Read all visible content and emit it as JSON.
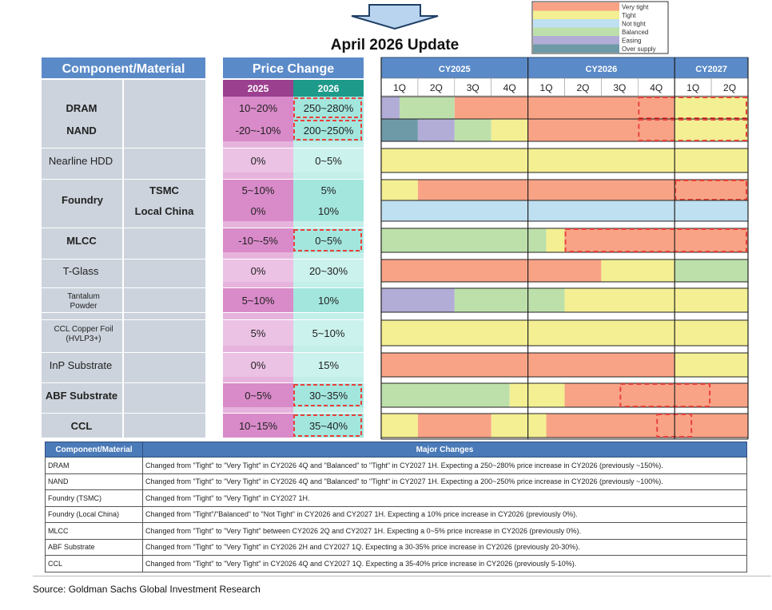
{
  "title": "April 2026 Update",
  "colors": {
    "very_tight": "#f9a386",
    "tight": "#f4ef93",
    "not_tight": "#bfe0f1",
    "balanced": "#bde0ab",
    "easing": "#b1add6",
    "over_supply": "#6e9aa8",
    "header_blue": "#5b8ac8",
    "sub_gray": "#ccd3dc",
    "pc2025": "#d98ac9",
    "pc2026": "#a3e6de",
    "dashed": "#e8413b"
  },
  "chart_data": {
    "type": "table",
    "title": "April 2026 Update",
    "legend": [
      {
        "key": "very_tight",
        "label": "Very tight"
      },
      {
        "key": "tight",
        "label": "Tight"
      },
      {
        "key": "not_tight",
        "label": "Not tight"
      },
      {
        "key": "balanced",
        "label": "Balanced"
      },
      {
        "key": "easing",
        "label": "Easing"
      },
      {
        "key": "over_supply",
        "label": "Over supply"
      }
    ],
    "headers": {
      "component": "Component/Material",
      "price_change": "Price Change",
      "y2025": "2025",
      "y2026": "2026",
      "years": [
        "CY2025",
        "CY2026",
        "CY2027"
      ],
      "quarters": [
        "1Q",
        "2Q",
        "3Q",
        "4Q",
        "1Q",
        "2Q",
        "3Q",
        "4Q",
        "1Q",
        "2Q"
      ]
    },
    "rows": [
      {
        "name": "DRAM",
        "sub": "",
        "bold": true,
        "pc2025": "10~20%",
        "pc2026": "250~280%",
        "dash2026": true,
        "segments": [
          [
            0,
            0.5,
            "easing"
          ],
          [
            0.5,
            2,
            "balanced"
          ],
          [
            2,
            4,
            "very_tight"
          ],
          [
            4,
            7,
            "very_tight"
          ],
          [
            7,
            8,
            "very_tight"
          ],
          [
            8,
            10,
            "tight"
          ]
        ],
        "dash": [
          [
            7,
            10
          ]
        ]
      },
      {
        "name": "NAND",
        "sub": "",
        "bold": true,
        "pc2025": "-20~-10%",
        "pc2026": "200~250%",
        "dash2026": true,
        "segments": [
          [
            0,
            1,
            "over_supply"
          ],
          [
            1,
            2,
            "easing"
          ],
          [
            2,
            3,
            "balanced"
          ],
          [
            3,
            4,
            "tight"
          ],
          [
            4,
            7,
            "very_tight"
          ],
          [
            7,
            8,
            "very_tight"
          ],
          [
            8,
            10,
            "tight"
          ]
        ],
        "dash": [
          [
            7,
            10
          ]
        ]
      },
      {
        "name": "Nearline HDD",
        "sub": "",
        "bold": false,
        "pc2025": "0%",
        "pc2026": "0~5%",
        "dash2026": false,
        "segments": [
          [
            0,
            10,
            "tight"
          ]
        ],
        "dash": []
      },
      {
        "name": "Foundry",
        "sub": "TSMC",
        "bold": true,
        "pc2025": "5~10%",
        "pc2026": "5%",
        "dash2026": false,
        "segments": [
          [
            0,
            1,
            "tight"
          ],
          [
            1,
            10,
            "very_tight"
          ]
        ],
        "dash": [
          [
            8,
            10
          ]
        ]
      },
      {
        "name": "",
        "sub": "Local China",
        "bold": true,
        "pc2025": "0%",
        "pc2026": "10%",
        "dash2026": false,
        "segments": [
          [
            0,
            10,
            "not_tight"
          ]
        ],
        "dash": []
      },
      {
        "name": "MLCC",
        "sub": "",
        "bold": true,
        "pc2025": "-10~-5%",
        "pc2026": "0~5%",
        "dash2026": true,
        "segments": [
          [
            0,
            4.5,
            "balanced"
          ],
          [
            4.5,
            5,
            "tight"
          ],
          [
            5,
            10,
            "very_tight"
          ]
        ],
        "dash": [
          [
            5,
            10
          ]
        ]
      },
      {
        "name": "T-Glass",
        "sub": "",
        "bold": false,
        "pc2025": "0%",
        "pc2026": "20~30%",
        "dash2026": false,
        "segments": [
          [
            0,
            6,
            "very_tight"
          ],
          [
            6,
            8,
            "tight"
          ],
          [
            8,
            10,
            "balanced"
          ]
        ],
        "dash": []
      },
      {
        "name": "Tantalum",
        "name2": "Powder",
        "sub": "",
        "bold": false,
        "small": true,
        "pc2025": "5~10%",
        "pc2026": "10%",
        "dash2026": false,
        "segments": [
          [
            0,
            2,
            "easing"
          ],
          [
            2,
            5,
            "balanced"
          ],
          [
            5,
            10,
            "tight"
          ]
        ],
        "dash": []
      },
      {
        "name": "CCL Copper Foil",
        "name2": "(HVLP3+)",
        "sub": "",
        "bold": false,
        "small": true,
        "pc2025": "5%",
        "pc2026": "5~10%",
        "dash2026": false,
        "segments": [
          [
            0,
            10,
            "tight"
          ]
        ],
        "dash": []
      },
      {
        "name": "InP Substrate",
        "sub": "",
        "bold": false,
        "pc2025": "0%",
        "pc2026": "15%",
        "dash2026": false,
        "segments": [
          [
            0,
            8,
            "very_tight"
          ],
          [
            8,
            10,
            "tight"
          ]
        ],
        "dash": []
      },
      {
        "name": "ABF Substrate",
        "sub": "",
        "bold": true,
        "pc2025": "0~5%",
        "pc2026": "30~35%",
        "dash2026": true,
        "segments": [
          [
            0,
            3.5,
            "balanced"
          ],
          [
            3.5,
            5,
            "tight"
          ],
          [
            5,
            10,
            "very_tight"
          ]
        ],
        "dash": [
          [
            6.5,
            9
          ]
        ]
      },
      {
        "name": "CCL",
        "sub": "",
        "bold": true,
        "pc2025": "10~15%",
        "pc2026": "35~40%",
        "dash2026": true,
        "segments": [
          [
            0,
            1,
            "tight"
          ],
          [
            1,
            3,
            "very_tight"
          ],
          [
            3,
            4,
            "tight"
          ],
          [
            4,
            4.5,
            "tight"
          ],
          [
            4.5,
            10,
            "very_tight"
          ]
        ],
        "dash": [
          [
            7.5,
            8.5
          ]
        ]
      }
    ]
  },
  "changes": {
    "col1": "Component/Material",
    "col2": "Major Changes",
    "rows": [
      {
        "name": "DRAM",
        "text": "Changed from \"Tight\" to \"Very Tight\" in CY2026 4Q and \"Balanced\" to \"Tight\" in CY2027 1H. Expecting a 250~280% price increase in CY2026 (previously ~150%)."
      },
      {
        "name": "NAND",
        "text": "Changed from \"Tight\" to \"Very Tight\" in CY2026 4Q and \"Balanced\" to \"Tight\" in CY2027 1H. Expecting a 200~250% price increase in CY2026 (previously ~100%)."
      },
      {
        "name": "Foundry (TSMC)",
        "text": "Changed from \"Tight\" to \"Very Tight\" in CY2027 1H."
      },
      {
        "name": "Foundry (Local China)",
        "text": "Changed from \"Tight\"/\"Balanced\" to \"Not Tight\" in CY2026 and CY2027 1H. Expecting a 10% price increase in CY2026 (previously 0%)."
      },
      {
        "name": "MLCC",
        "text": "Changed from \"Tight\" to \"Very Tight\" between CY2026 2Q and CY2027 1H. Expecting a 0~5% price increase in CY2026 (previously 0%)."
      },
      {
        "name": "ABF Substrate",
        "text": "Changed from \"Tight\" to \"Very Tight\" in CY2026 2H and CY2027 1Q. Expecting a 30-35% price increase in CY2026 (previously 20-30%)."
      },
      {
        "name": "CCL",
        "text": "Changed from \"Tight\" to \"Very Tight\"  in CY2026 4Q and CY2027 1Q. Expecting a 35-40% price increase in CY2026 (previously 5-10%)."
      }
    ]
  },
  "source": "Source: Goldman Sachs Global Investment Research"
}
